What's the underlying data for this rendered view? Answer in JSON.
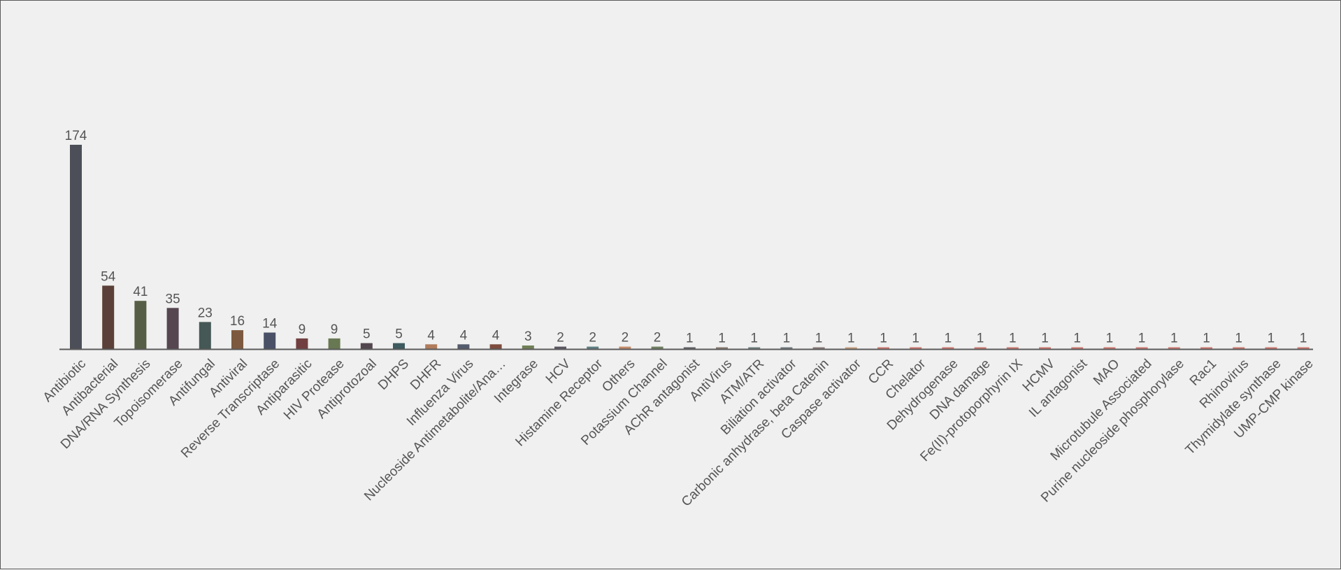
{
  "chart_data": {
    "type": "bar",
    "title": "",
    "xlabel": "",
    "ylabel": "",
    "ylim": [
      0,
      200
    ],
    "grid": false,
    "legend": "none",
    "categories": [
      "Antibiotic",
      "Antibacterial",
      "DNA/RNA Synthesis",
      "Topoisomerase",
      "Antifungal",
      "Antiviral",
      "Reverse Transcriptase",
      "Antiparasitic",
      "HIV Protease",
      "Antiprotozoal",
      "DHPS",
      "DHFR",
      "Influenza Virus",
      "Nucleoside Antimetabolite/Ana…",
      "Integrase",
      "HCV",
      "Histamine Receptor",
      "Others",
      "Potassium Channel",
      "AChR antagonist",
      "AntiVirus",
      "ATM/ATR",
      "Biliation activator",
      "Carbonic anhydrase, beta Catenin",
      "Caspase activator",
      "CCR",
      "Chelator",
      "Dehydrogenase",
      "DNA damage",
      "Fe(II)-protoporphyrin IX",
      "HCMV",
      "IL antagonist",
      "MAO",
      "Microtubule Associated",
      "Purine nucleoside phosphorylase",
      "Rac1",
      "Rhinovirus",
      "Thymidylate synthase",
      "UMP-CMP kinase"
    ],
    "values": [
      174,
      54,
      41,
      35,
      23,
      16,
      14,
      9,
      9,
      5,
      5,
      4,
      4,
      4,
      3,
      2,
      2,
      2,
      2,
      1,
      1,
      1,
      1,
      1,
      1,
      1,
      1,
      1,
      1,
      1,
      1,
      1,
      1,
      1,
      1,
      1,
      1,
      1,
      1
    ],
    "colors": [
      "#4c4f58",
      "#5a4038",
      "#565f45",
      "#564650",
      "#455855",
      "#7d5a3f",
      "#4a5066",
      "#713f3f",
      "#687852",
      "#53474f",
      "#3e5b5f",
      "#b07c5c",
      "#535b6d",
      "#7d4c3e",
      "#717f56",
      "#5a5563",
      "#5f7f82",
      "#c48b6a",
      "#6f8060",
      "#5f5f66",
      "#8a7a70",
      "#6f7f80",
      "#707a80",
      "#8a7a78",
      "#c8a080",
      "#d07870",
      "#d07870",
      "#d07870",
      "#d07870",
      "#d07870",
      "#d07870",
      "#d07870",
      "#d07870",
      "#d07870",
      "#d07870",
      "#d07870",
      "#d07870",
      "#d07870",
      "#d07870"
    ],
    "axis_color": "#5a5a5a"
  }
}
